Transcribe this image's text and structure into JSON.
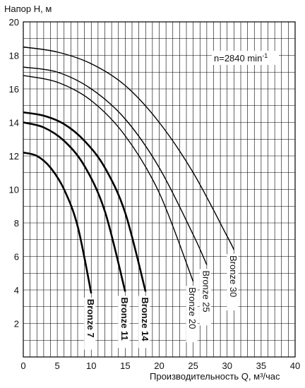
{
  "chart_data": {
    "type": "line",
    "title": "",
    "ylabel": "Напор H, м",
    "xlabel": "Производительность Q, м³/час",
    "annotation": "n=2840 min-1",
    "xlim": [
      0,
      40
    ],
    "ylim": [
      0,
      20
    ],
    "xticks": [
      0,
      5,
      10,
      15,
      20,
      25,
      30,
      35,
      40
    ],
    "yticks": [
      2,
      4,
      6,
      8,
      10,
      12,
      14,
      16,
      18,
      20
    ],
    "xtick_labels": [
      "0",
      "5",
      "10",
      "15",
      "20",
      "25",
      "30",
      "35",
      "40"
    ],
    "ytick_labels": [
      "2",
      "4",
      "6",
      "8",
      "10",
      "12",
      "14",
      "16",
      "18",
      "20"
    ],
    "grid": true,
    "series": [
      {
        "name": "Bronze 7",
        "bold": true,
        "x": [
          0,
          2,
          4,
          6,
          8,
          10
        ],
        "y": [
          12.2,
          12.0,
          11.3,
          10.0,
          7.8,
          3.8
        ]
      },
      {
        "name": "Bronze 11",
        "bold": true,
        "x": [
          0,
          3,
          6,
          9,
          12,
          15
        ],
        "y": [
          14.0,
          13.7,
          12.9,
          11.4,
          8.7,
          3.9
        ]
      },
      {
        "name": "Bronze 14",
        "bold": true,
        "x": [
          0,
          3,
          6,
          9,
          12,
          15,
          18
        ],
        "y": [
          14.6,
          14.4,
          13.9,
          12.9,
          11.3,
          8.6,
          3.9
        ]
      },
      {
        "name": "Bronze 20",
        "bold": false,
        "x": [
          0,
          5,
          10,
          15,
          20,
          25
        ],
        "y": [
          16.8,
          16.4,
          15.3,
          13.2,
          9.8,
          4.5
        ]
      },
      {
        "name": "Bronze 25",
        "bold": false,
        "x": [
          0,
          5,
          10,
          15,
          20,
          25,
          27
        ],
        "y": [
          17.3,
          17.0,
          16.0,
          14.2,
          11.3,
          7.3,
          5.5
        ]
      },
      {
        "name": "Bronze 30",
        "bold": false,
        "x": [
          0,
          5,
          10,
          15,
          20,
          25,
          30,
          31
        ],
        "y": [
          18.5,
          18.2,
          17.5,
          16.2,
          14.0,
          11.0,
          7.2,
          6.4
        ]
      }
    ]
  }
}
